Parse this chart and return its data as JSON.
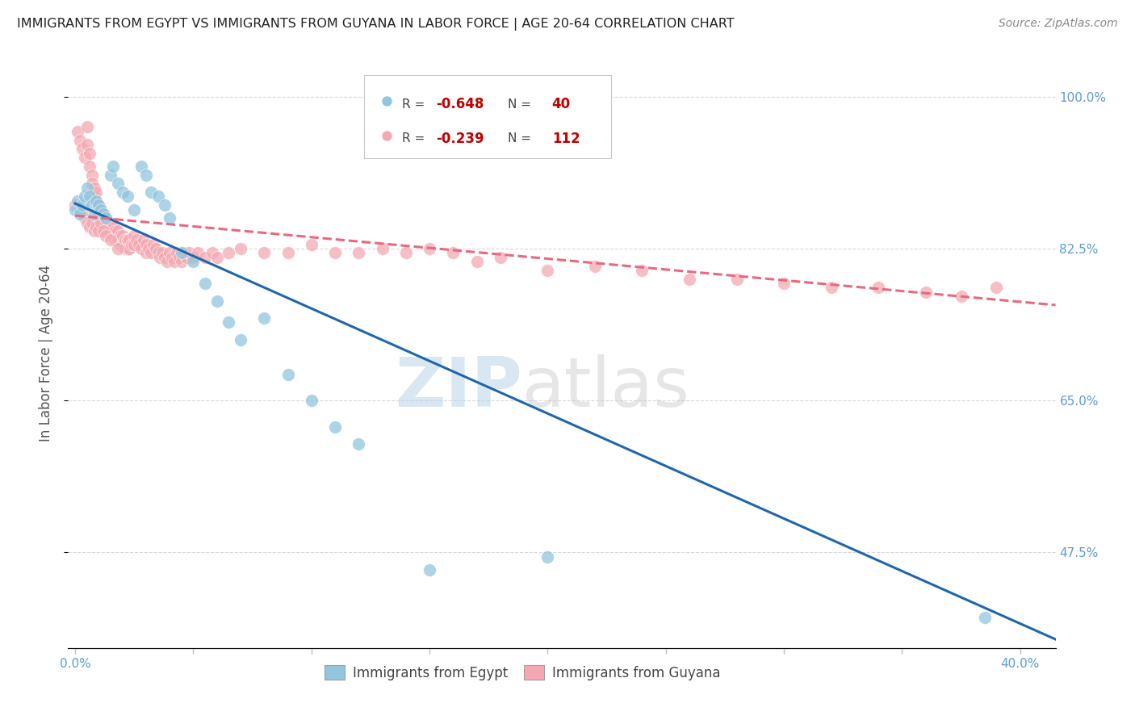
{
  "title": "IMMIGRANTS FROM EGYPT VS IMMIGRANTS FROM GUYANA IN LABOR FORCE | AGE 20-64 CORRELATION CHART",
  "source": "Source: ZipAtlas.com",
  "ylabel": "In Labor Force | Age 20-64",
  "yaxis_labels": [
    "100.0%",
    "82.5%",
    "65.0%",
    "47.5%"
  ],
  "yaxis_values": [
    1.0,
    0.825,
    0.65,
    0.475
  ],
  "xaxis_ticks": [
    0.0,
    0.05,
    0.1,
    0.15,
    0.2,
    0.25,
    0.3,
    0.35,
    0.4
  ],
  "xlim": [
    -0.003,
    0.415
  ],
  "ylim": [
    0.365,
    1.045
  ],
  "egypt_color": "#92c5de",
  "guyana_color": "#f4a9b2",
  "egypt_line_color": "#2166ac",
  "guyana_line_color": "#e8697d",
  "egypt_R": -0.648,
  "egypt_N": 40,
  "guyana_R": -0.239,
  "guyana_N": 112,
  "watermark_zip": "ZIP",
  "watermark_atlas": "atlas",
  "egypt_points_x": [
    0.0,
    0.001,
    0.002,
    0.003,
    0.004,
    0.005,
    0.006,
    0.007,
    0.008,
    0.009,
    0.01,
    0.011,
    0.012,
    0.013,
    0.015,
    0.016,
    0.018,
    0.02,
    0.022,
    0.025,
    0.028,
    0.03,
    0.032,
    0.035,
    0.038,
    0.04,
    0.045,
    0.05,
    0.055,
    0.06,
    0.065,
    0.07,
    0.08,
    0.09,
    0.1,
    0.11,
    0.12,
    0.15,
    0.2,
    0.385
  ],
  "egypt_points_y": [
    0.87,
    0.88,
    0.865,
    0.875,
    0.885,
    0.895,
    0.885,
    0.875,
    0.865,
    0.88,
    0.875,
    0.87,
    0.865,
    0.86,
    0.91,
    0.92,
    0.9,
    0.89,
    0.885,
    0.87,
    0.92,
    0.91,
    0.89,
    0.885,
    0.875,
    0.86,
    0.82,
    0.81,
    0.785,
    0.765,
    0.74,
    0.72,
    0.745,
    0.68,
    0.65,
    0.62,
    0.6,
    0.455,
    0.47,
    0.4
  ],
  "guyana_points_x": [
    0.0,
    0.001,
    0.002,
    0.003,
    0.004,
    0.005,
    0.005,
    0.006,
    0.006,
    0.007,
    0.007,
    0.008,
    0.008,
    0.009,
    0.009,
    0.01,
    0.01,
    0.011,
    0.011,
    0.012,
    0.012,
    0.013,
    0.013,
    0.014,
    0.014,
    0.015,
    0.015,
    0.016,
    0.016,
    0.017,
    0.017,
    0.018,
    0.018,
    0.019,
    0.019,
    0.02,
    0.02,
    0.021,
    0.021,
    0.022,
    0.022,
    0.023,
    0.023,
    0.024,
    0.025,
    0.025,
    0.026,
    0.027,
    0.028,
    0.029,
    0.03,
    0.03,
    0.031,
    0.032,
    0.033,
    0.034,
    0.035,
    0.036,
    0.037,
    0.038,
    0.039,
    0.04,
    0.041,
    0.042,
    0.043,
    0.044,
    0.045,
    0.046,
    0.047,
    0.048,
    0.05,
    0.052,
    0.055,
    0.058,
    0.06,
    0.065,
    0.07,
    0.08,
    0.09,
    0.1,
    0.11,
    0.12,
    0.13,
    0.14,
    0.15,
    0.16,
    0.17,
    0.18,
    0.2,
    0.22,
    0.24,
    0.26,
    0.28,
    0.3,
    0.32,
    0.34,
    0.36,
    0.375,
    0.39,
    0.003,
    0.004,
    0.005,
    0.006,
    0.007,
    0.008,
    0.009,
    0.01,
    0.011,
    0.012,
    0.013,
    0.015,
    0.018
  ],
  "guyana_points_y": [
    0.875,
    0.96,
    0.95,
    0.94,
    0.93,
    0.965,
    0.945,
    0.92,
    0.935,
    0.91,
    0.9,
    0.895,
    0.885,
    0.89,
    0.88,
    0.875,
    0.865,
    0.87,
    0.86,
    0.865,
    0.855,
    0.86,
    0.85,
    0.855,
    0.845,
    0.855,
    0.845,
    0.85,
    0.84,
    0.845,
    0.835,
    0.845,
    0.835,
    0.84,
    0.83,
    0.84,
    0.83,
    0.835,
    0.825,
    0.835,
    0.825,
    0.835,
    0.825,
    0.83,
    0.84,
    0.83,
    0.835,
    0.83,
    0.825,
    0.835,
    0.83,
    0.82,
    0.825,
    0.82,
    0.83,
    0.825,
    0.82,
    0.815,
    0.82,
    0.815,
    0.81,
    0.82,
    0.815,
    0.81,
    0.82,
    0.815,
    0.81,
    0.82,
    0.815,
    0.82,
    0.815,
    0.82,
    0.815,
    0.82,
    0.815,
    0.82,
    0.825,
    0.82,
    0.82,
    0.83,
    0.82,
    0.82,
    0.825,
    0.82,
    0.825,
    0.82,
    0.81,
    0.815,
    0.8,
    0.805,
    0.8,
    0.79,
    0.79,
    0.785,
    0.78,
    0.78,
    0.775,
    0.77,
    0.78,
    0.87,
    0.86,
    0.855,
    0.85,
    0.855,
    0.845,
    0.85,
    0.845,
    0.855,
    0.845,
    0.84,
    0.835,
    0.825
  ]
}
